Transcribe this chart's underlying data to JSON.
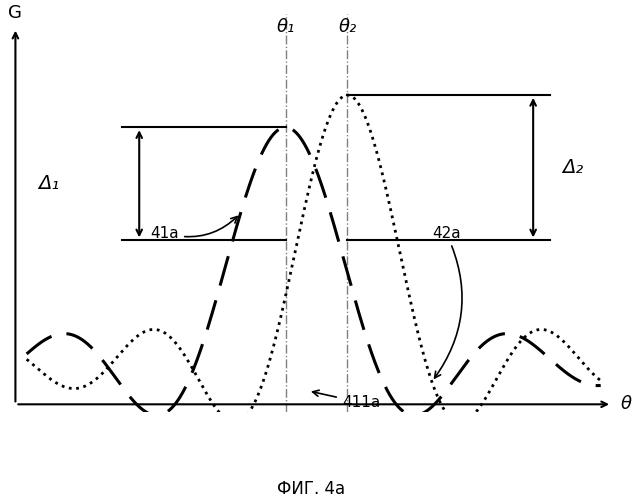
{
  "title": "ФИГ. 4a",
  "xlabel": "θ",
  "ylabel": "G",
  "theta1": 0.46,
  "theta2": 0.57,
  "xlim": [
    -0.04,
    1.05
  ],
  "ylim": [
    -0.18,
    1.3
  ],
  "annotation_41a": "41a",
  "annotation_42a": "42a",
  "annotation_411a": "411a",
  "annotation_theta1": "θ₁",
  "annotation_theta2": "θ₂",
  "annotation_delta1": "Δ₁",
  "annotation_delta2": "Δ₂",
  "peak1": 0.88,
  "peak2": 1.0,
  "lower_level": 0.46,
  "curve1_lw": 2.2,
  "curve2_lw": 2.0
}
